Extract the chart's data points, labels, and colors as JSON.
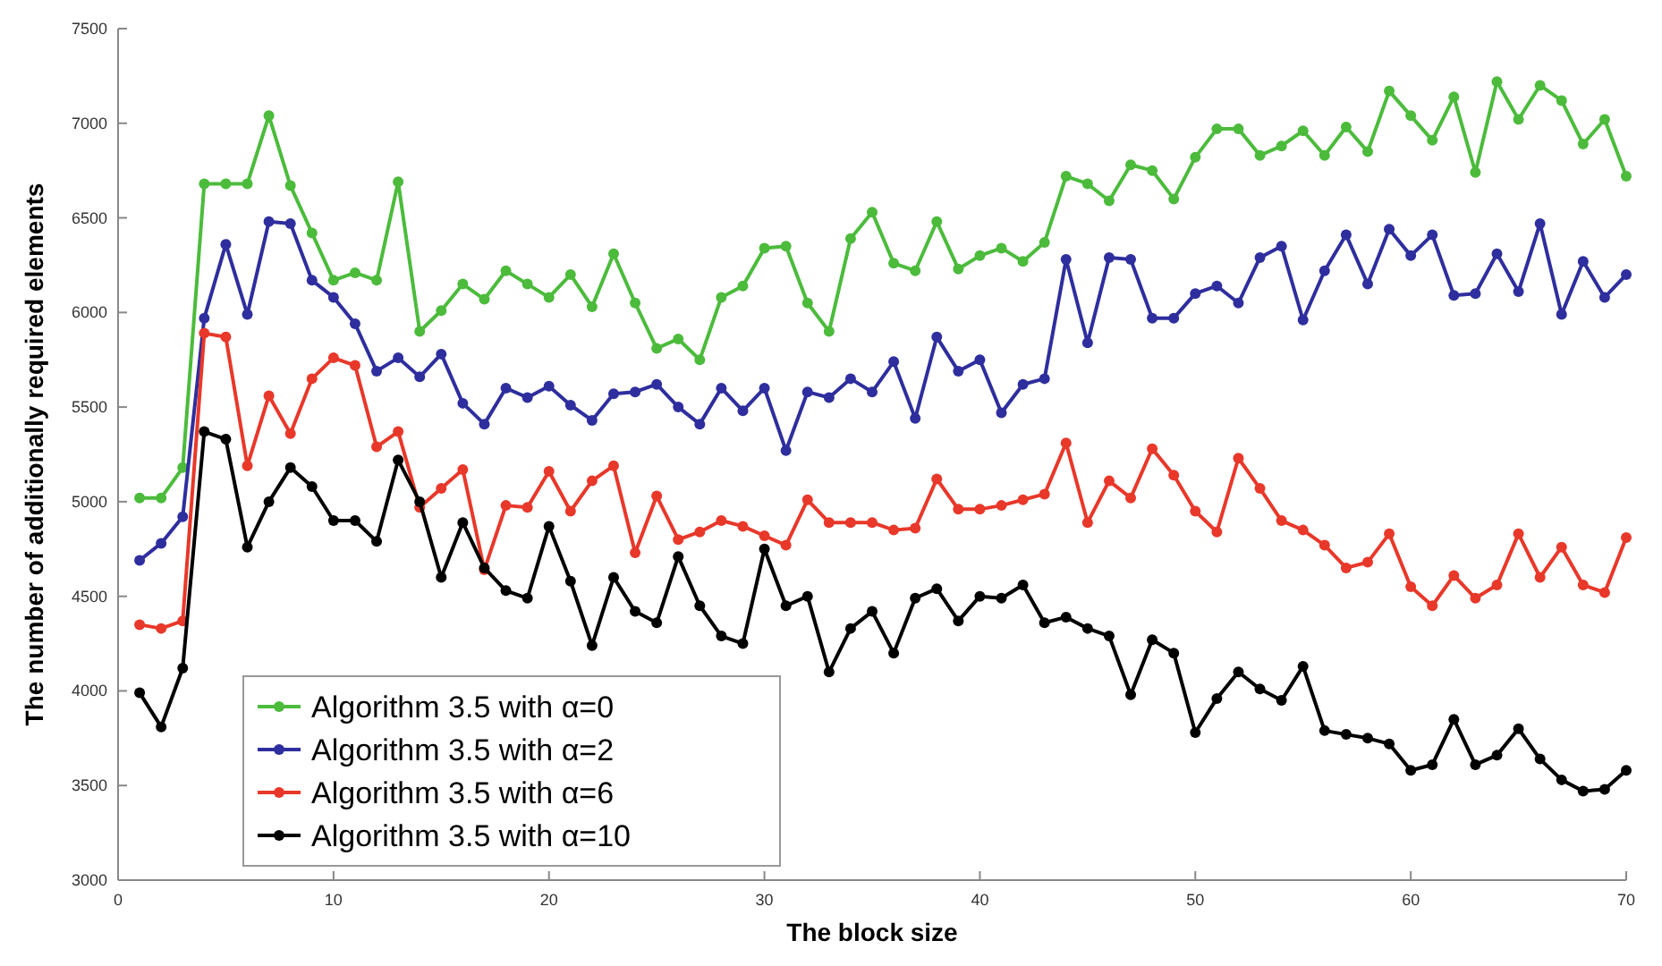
{
  "chart_data": {
    "type": "line",
    "xlabel": "The block size",
    "ylabel": "The number of additionally required elements",
    "x": [
      1,
      2,
      3,
      4,
      5,
      6,
      7,
      8,
      9,
      10,
      11,
      12,
      13,
      14,
      15,
      16,
      17,
      18,
      19,
      20,
      21,
      22,
      23,
      24,
      25,
      26,
      27,
      28,
      29,
      30,
      31,
      32,
      33,
      34,
      35,
      36,
      37,
      38,
      39,
      40,
      41,
      42,
      43,
      44,
      45,
      46,
      47,
      48,
      49,
      50,
      51,
      52,
      53,
      54,
      55,
      56,
      57,
      58,
      59,
      60,
      61,
      62,
      63,
      64,
      65,
      66,
      67,
      68,
      69,
      70
    ],
    "xlim": [
      0,
      70
    ],
    "xticks": [
      0,
      10,
      20,
      30,
      40,
      50,
      60,
      70
    ],
    "ylim": [
      3000,
      7500
    ],
    "yticks": [
      3000,
      3500,
      4000,
      4500,
      5000,
      5500,
      6000,
      6500,
      7000,
      7500
    ],
    "grid": false,
    "legend": "bottom left",
    "marker": "circle",
    "line_style": "solid",
    "series": [
      {
        "name": "Algorithm 3.5 with α=0",
        "color": "#4cbb3c",
        "values": [
          5020,
          5020,
          5180,
          6680,
          6680,
          6680,
          7040,
          6670,
          6420,
          6170,
          6210,
          6170,
          6690,
          5900,
          6010,
          6150,
          6070,
          6220,
          6150,
          6080,
          6200,
          6030,
          6310,
          6050,
          5810,
          5860,
          5750,
          6080,
          6140,
          6340,
          6350,
          6050,
          5900,
          6390,
          6530,
          6260,
          6220,
          6480,
          6230,
          6300,
          6340,
          6270,
          6370,
          6720,
          6680,
          6590,
          6780,
          6750,
          6600,
          6820,
          6970,
          6970,
          6830,
          6880,
          6960,
          6830,
          6980,
          6850,
          7170,
          7040,
          6910,
          7140,
          6740,
          7220,
          7020,
          7200,
          7120,
          6890,
          7020,
          6720
        ]
      },
      {
        "name": "Algorithm 3.5 with α=2",
        "color": "#2e2e9e",
        "values": [
          4690,
          4780,
          4920,
          5970,
          6360,
          5990,
          6480,
          6470,
          6170,
          6080,
          5940,
          5690,
          5760,
          5660,
          5780,
          5520,
          5410,
          5600,
          5550,
          5610,
          5510,
          5430,
          5570,
          5580,
          5620,
          5500,
          5410,
          5600,
          5480,
          5600,
          5270,
          5580,
          5550,
          5650,
          5580,
          5740,
          5440,
          5870,
          5690,
          5750,
          5470,
          5620,
          5650,
          6280,
          5840,
          6290,
          6280,
          5970,
          5970,
          6100,
          6140,
          6050,
          6290,
          6350,
          5960,
          6220,
          6410,
          6150,
          6440,
          6300,
          6410,
          6090,
          6100,
          6310,
          6110,
          6470,
          5990,
          6270,
          6080,
          6200
        ]
      },
      {
        "name": "Algorithm 3.5 with α=6",
        "color": "#e8382a",
        "values": [
          4350,
          4330,
          4370,
          5890,
          5870,
          5190,
          5560,
          5360,
          5650,
          5760,
          5720,
          5290,
          5370,
          4970,
          5070,
          5170,
          4640,
          4980,
          4970,
          5160,
          4950,
          5110,
          5190,
          4730,
          5030,
          4800,
          4840,
          4900,
          4870,
          4820,
          4770,
          5010,
          4890,
          4890,
          4890,
          4850,
          4860,
          5120,
          4960,
          4960,
          4980,
          5010,
          5040,
          5310,
          4890,
          5110,
          5020,
          5280,
          5140,
          4950,
          4840,
          5230,
          5070,
          4900,
          4850,
          4770,
          4650,
          4680,
          4830,
          4550,
          4450,
          4610,
          4490,
          4560,
          4830,
          4600,
          4760,
          4560,
          4520,
          4810
        ]
      },
      {
        "name": "Algorithm 3.5 with α=10",
        "color": "#000000",
        "values": [
          3990,
          3810,
          4120,
          5370,
          5330,
          4760,
          5000,
          5180,
          5080,
          4900,
          4900,
          4790,
          5220,
          5000,
          4600,
          4890,
          4650,
          4530,
          4490,
          4870,
          4580,
          4240,
          4600,
          4420,
          4360,
          4710,
          4450,
          4290,
          4250,
          4750,
          4450,
          4500,
          4100,
          4330,
          4420,
          4200,
          4490,
          4540,
          4370,
          4500,
          4490,
          4560,
          4360,
          4390,
          4330,
          4290,
          3980,
          4270,
          4200,
          3780,
          3960,
          4100,
          4010,
          3950,
          4130,
          3790,
          3770,
          3750,
          3720,
          3580,
          3610,
          3850,
          3610,
          3660,
          3800,
          3640,
          3530,
          3470,
          3480,
          3580
        ]
      }
    ]
  }
}
